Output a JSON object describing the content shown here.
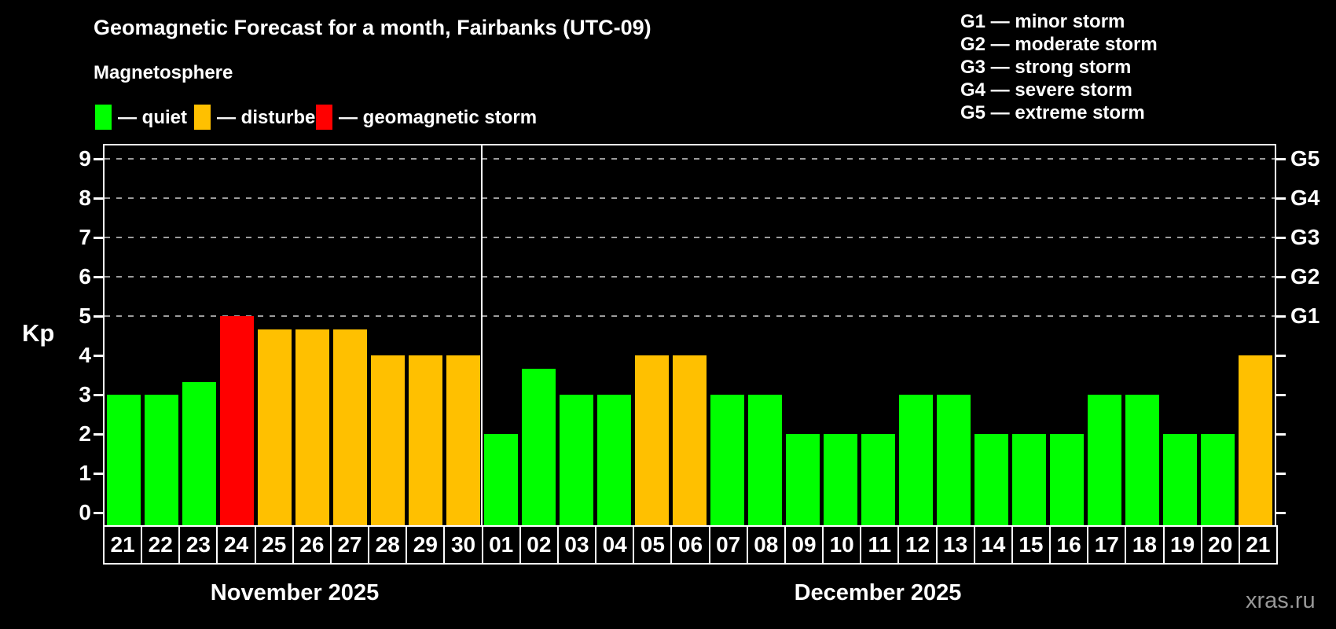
{
  "title": "Geomagnetic Forecast for a month, Fairbanks (UTC-09)",
  "legend": {
    "title": "Magnetosphere",
    "items": [
      {
        "status": "quiet",
        "label": "— quiet",
        "color": "#00ff00"
      },
      {
        "status": "disturbed",
        "label": "— disturbed",
        "color": "#ffc000"
      },
      {
        "status": "storm",
        "label": "— geomagnetic storm",
        "color": "#ff0000"
      }
    ]
  },
  "storm_legend": [
    "G1 — minor storm",
    "G2 — moderate storm",
    "G3 — strong storm",
    "G4 — severe storm",
    "G5 — extreme storm"
  ],
  "watermark": "xras.ru",
  "chart_data": {
    "type": "bar",
    "title": "Geomagnetic Forecast for a month, Fairbanks (UTC-09)",
    "ylabel": "Kp",
    "ylim": [
      -0.33,
      9.38
    ],
    "yticks": [
      0,
      1,
      2,
      3,
      4,
      5,
      6,
      7,
      8,
      9
    ],
    "gridlines_at": [
      5,
      6,
      7,
      8,
      9
    ],
    "grid": "dashed horizontal lines at storm levels only",
    "right_axis": [
      {
        "label": "G1",
        "value": 5
      },
      {
        "label": "G2",
        "value": 6
      },
      {
        "label": "G3",
        "value": 7
      },
      {
        "label": "G4",
        "value": 8
      },
      {
        "label": "G5",
        "value": 9
      }
    ],
    "colors": {
      "quiet": "#00ff00",
      "disturbed": "#ffc000",
      "storm": "#ff0000",
      "background": "#000000"
    },
    "months": [
      {
        "label": "November 2025",
        "key": "nov",
        "days": 10
      },
      {
        "label": "December 2025",
        "key": "dec",
        "days": 21
      }
    ],
    "bars": [
      {
        "day": "21",
        "value": 3,
        "status": "quiet"
      },
      {
        "day": "22",
        "value": 3,
        "status": "quiet"
      },
      {
        "day": "23",
        "value": 3.33,
        "status": "quiet"
      },
      {
        "day": "24",
        "value": 5,
        "status": "storm"
      },
      {
        "day": "25",
        "value": 4.67,
        "status": "disturbed"
      },
      {
        "day": "26",
        "value": 4.67,
        "status": "disturbed"
      },
      {
        "day": "27",
        "value": 4.67,
        "status": "disturbed"
      },
      {
        "day": "28",
        "value": 4,
        "status": "disturbed"
      },
      {
        "day": "29",
        "value": 4,
        "status": "disturbed"
      },
      {
        "day": "30",
        "value": 4,
        "status": "disturbed"
      },
      {
        "day": "01",
        "value": 2,
        "status": "quiet"
      },
      {
        "day": "02",
        "value": 3.67,
        "status": "quiet"
      },
      {
        "day": "03",
        "value": 3,
        "status": "quiet"
      },
      {
        "day": "04",
        "value": 3,
        "status": "quiet"
      },
      {
        "day": "05",
        "value": 4,
        "status": "disturbed"
      },
      {
        "day": "06",
        "value": 4,
        "status": "disturbed"
      },
      {
        "day": "07",
        "value": 3,
        "status": "quiet"
      },
      {
        "day": "08",
        "value": 3,
        "status": "quiet"
      },
      {
        "day": "09",
        "value": 2,
        "status": "quiet"
      },
      {
        "day": "10",
        "value": 2,
        "status": "quiet"
      },
      {
        "day": "11",
        "value": 2,
        "status": "quiet"
      },
      {
        "day": "12",
        "value": 3,
        "status": "quiet"
      },
      {
        "day": "13",
        "value": 3,
        "status": "quiet"
      },
      {
        "day": "14",
        "value": 2,
        "status": "quiet"
      },
      {
        "day": "15",
        "value": 2,
        "status": "quiet"
      },
      {
        "day": "16",
        "value": 2,
        "status": "quiet"
      },
      {
        "day": "17",
        "value": 3,
        "status": "quiet"
      },
      {
        "day": "18",
        "value": 3,
        "status": "quiet"
      },
      {
        "day": "19",
        "value": 2,
        "status": "quiet"
      },
      {
        "day": "20",
        "value": 2,
        "status": "quiet"
      },
      {
        "day": "21",
        "value": 4,
        "status": "disturbed"
      }
    ]
  }
}
